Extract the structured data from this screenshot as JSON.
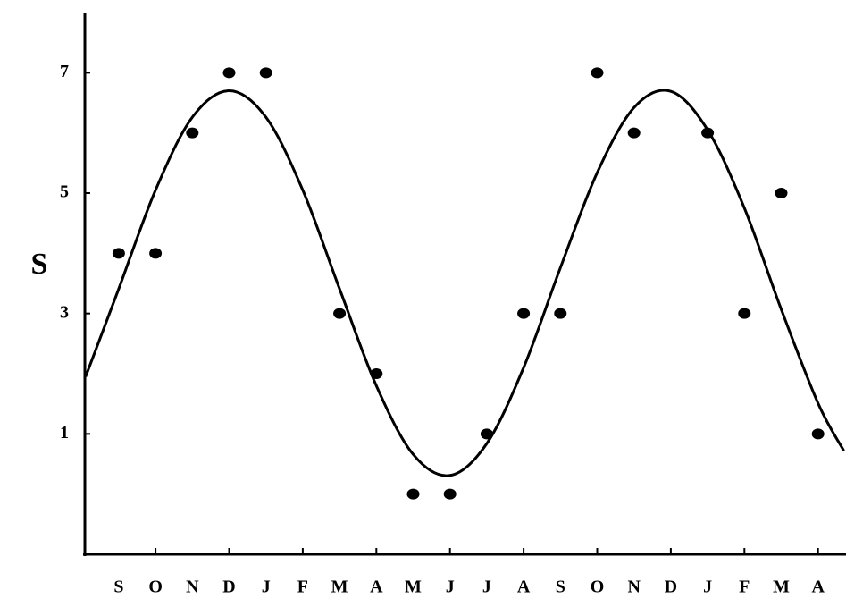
{
  "chart_data": {
    "type": "scatter",
    "y_label": "S",
    "categories": [
      "S",
      "O",
      "N",
      "D",
      "J",
      "F",
      "M",
      "A",
      "M",
      "J",
      "J",
      "A",
      "S",
      "O",
      "N",
      "D",
      "J",
      "F",
      "M",
      "A"
    ],
    "xlim": [
      -0.92,
      19.76
    ],
    "ylim": [
      -1,
      8
    ],
    "yticks": [
      1,
      3,
      5,
      7
    ],
    "series": [
      {
        "type": "scatter",
        "color": "#000000",
        "values": [
          4,
          4,
          6,
          7,
          7,
          null,
          3,
          2,
          0,
          0,
          1,
          3,
          3,
          7,
          6,
          null,
          6,
          3,
          5,
          1
        ]
      },
      {
        "type": "line",
        "color": "#000000",
        "x": [
          -0.9,
          0,
          1,
          2,
          3,
          4,
          5,
          6,
          7,
          8,
          9,
          10,
          11,
          12,
          13,
          14,
          15,
          16,
          17,
          18,
          19,
          19.7
        ],
        "values": [
          1.95,
          3.41,
          5.05,
          6.26,
          6.7,
          6.26,
          5.05,
          3.41,
          1.8,
          0.66,
          0.31,
          0.84,
          2.1,
          3.76,
          5.34,
          6.42,
          6.69,
          6.05,
          4.75,
          3.07,
          1.51,
          0.72
        ]
      }
    ]
  }
}
